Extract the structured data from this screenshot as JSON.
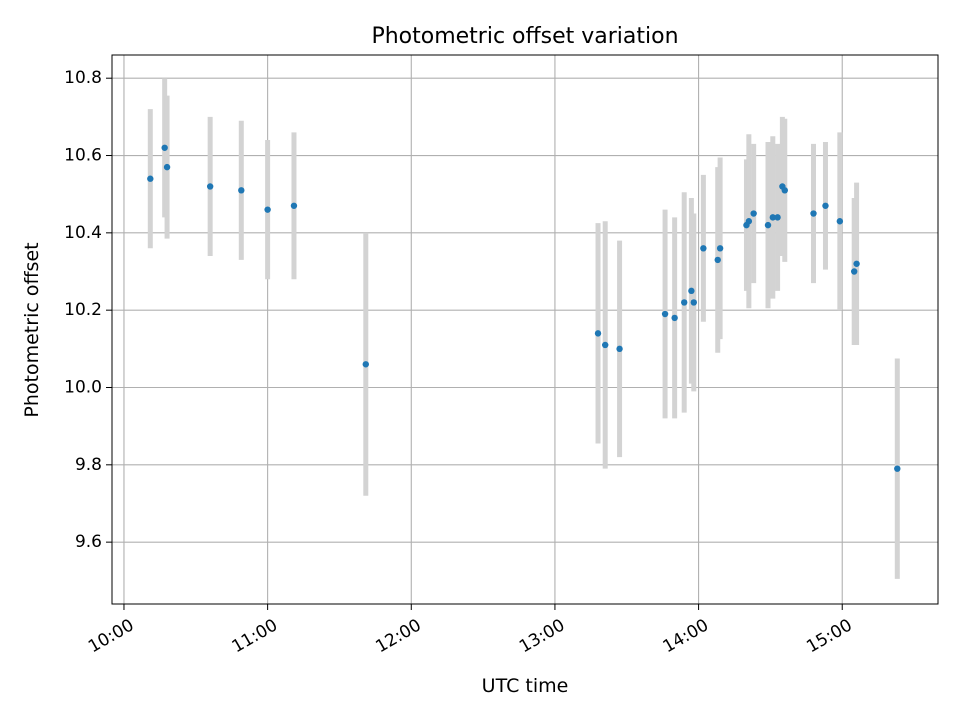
{
  "chart_data": {
    "type": "scatter",
    "title": "Photometric offset variation",
    "xlabel": "UTC time",
    "ylabel": "Photometric offset",
    "x_is_time": true,
    "xlim": [
      "09:55",
      "15:40"
    ],
    "ylim": [
      9.44,
      10.86
    ],
    "xticks": [
      "10:00",
      "11:00",
      "12:00",
      "13:00",
      "14:00",
      "15:00"
    ],
    "yticks": [
      9.6,
      9.8,
      10.0,
      10.2,
      10.4,
      10.6,
      10.8
    ],
    "grid": true,
    "colors": {
      "marker": "#1f77b4",
      "errorbar": "#d3d3d3",
      "grid": "#b0b0b0"
    },
    "points": [
      {
        "x": "10:11",
        "y": 10.54,
        "err": 0.18
      },
      {
        "x": "10:17",
        "y": 10.62,
        "err": 0.18
      },
      {
        "x": "10:18",
        "y": 10.57,
        "err": 0.185
      },
      {
        "x": "10:36",
        "y": 10.52,
        "err": 0.18
      },
      {
        "x": "10:49",
        "y": 10.51,
        "err": 0.18
      },
      {
        "x": "11:00",
        "y": 10.46,
        "err": 0.18
      },
      {
        "x": "11:11",
        "y": 10.47,
        "err": 0.19
      },
      {
        "x": "11:41",
        "y": 10.06,
        "err": 0.34
      },
      {
        "x": "13:18",
        "y": 10.14,
        "err": 0.285
      },
      {
        "x": "13:21",
        "y": 10.11,
        "err": 0.32
      },
      {
        "x": "13:27",
        "y": 10.1,
        "err": 0.28
      },
      {
        "x": "13:46",
        "y": 10.19,
        "err": 0.27
      },
      {
        "x": "13:50",
        "y": 10.18,
        "err": 0.26
      },
      {
        "x": "13:54",
        "y": 10.22,
        "err": 0.285
      },
      {
        "x": "13:57",
        "y": 10.25,
        "err": 0.24
      },
      {
        "x": "13:58",
        "y": 10.22,
        "err": 0.23
      },
      {
        "x": "14:02",
        "y": 10.36,
        "err": 0.19
      },
      {
        "x": "14:08",
        "y": 10.33,
        "err": 0.24
      },
      {
        "x": "14:09",
        "y": 10.36,
        "err": 0.235
      },
      {
        "x": "14:20",
        "y": 10.42,
        "err": 0.17
      },
      {
        "x": "14:21",
        "y": 10.43,
        "err": 0.225
      },
      {
        "x": "14:23",
        "y": 10.45,
        "err": 0.18
      },
      {
        "x": "14:29",
        "y": 10.42,
        "err": 0.215
      },
      {
        "x": "14:31",
        "y": 10.44,
        "err": 0.21
      },
      {
        "x": "14:33",
        "y": 10.44,
        "err": 0.19
      },
      {
        "x": "14:35",
        "y": 10.52,
        "err": 0.18
      },
      {
        "x": "14:36",
        "y": 10.51,
        "err": 0.185
      },
      {
        "x": "14:48",
        "y": 10.45,
        "err": 0.18
      },
      {
        "x": "14:53",
        "y": 10.47,
        "err": 0.165
      },
      {
        "x": "14:59",
        "y": 10.43,
        "err": 0.23
      },
      {
        "x": "15:05",
        "y": 10.3,
        "err": 0.19
      },
      {
        "x": "15:06",
        "y": 10.32,
        "err": 0.21
      },
      {
        "x": "15:23",
        "y": 9.79,
        "err": 0.285
      }
    ]
  }
}
